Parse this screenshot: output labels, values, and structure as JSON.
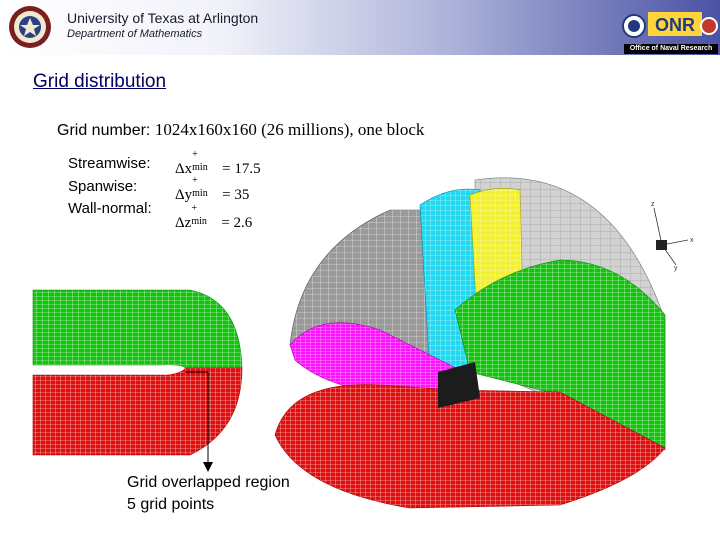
{
  "header": {
    "university": "University of Texas at Arlington",
    "department": "Department of Mathematics",
    "partner_label": "Office of Naval Research",
    "partner_logo_text": "ONR",
    "seal_icon": "ut-arlington-seal-icon"
  },
  "slide": {
    "title": "Grid distribution",
    "grid_number_label": "Grid number: ",
    "grid_number_value": "1024x160x160 (26 millions), one block",
    "rows": [
      {
        "label": "Streamwise:",
        "delta": "Δx",
        "value": "= 17.5"
      },
      {
        "label": "Spanwise:",
        "delta": "Δy",
        "value": "= 35"
      },
      {
        "label": "Wall-normal:",
        "delta": "Δz",
        "value": "= 2.6"
      }
    ],
    "superscript": "+",
    "subscript": "min",
    "annotation_line1": "Grid overlapped region",
    "annotation_line2": "5 grid points"
  },
  "figure": {
    "axes": {
      "x": "x",
      "y": "y",
      "z": "z"
    },
    "colors": {
      "green": "#12c40e",
      "red": "#e20e0e",
      "gray": "#9a9a9a",
      "light_gray": "#cfcfcf",
      "cyan": "#22d8f0",
      "yellow": "#f2f030",
      "magenta": "#ff10ff"
    }
  }
}
